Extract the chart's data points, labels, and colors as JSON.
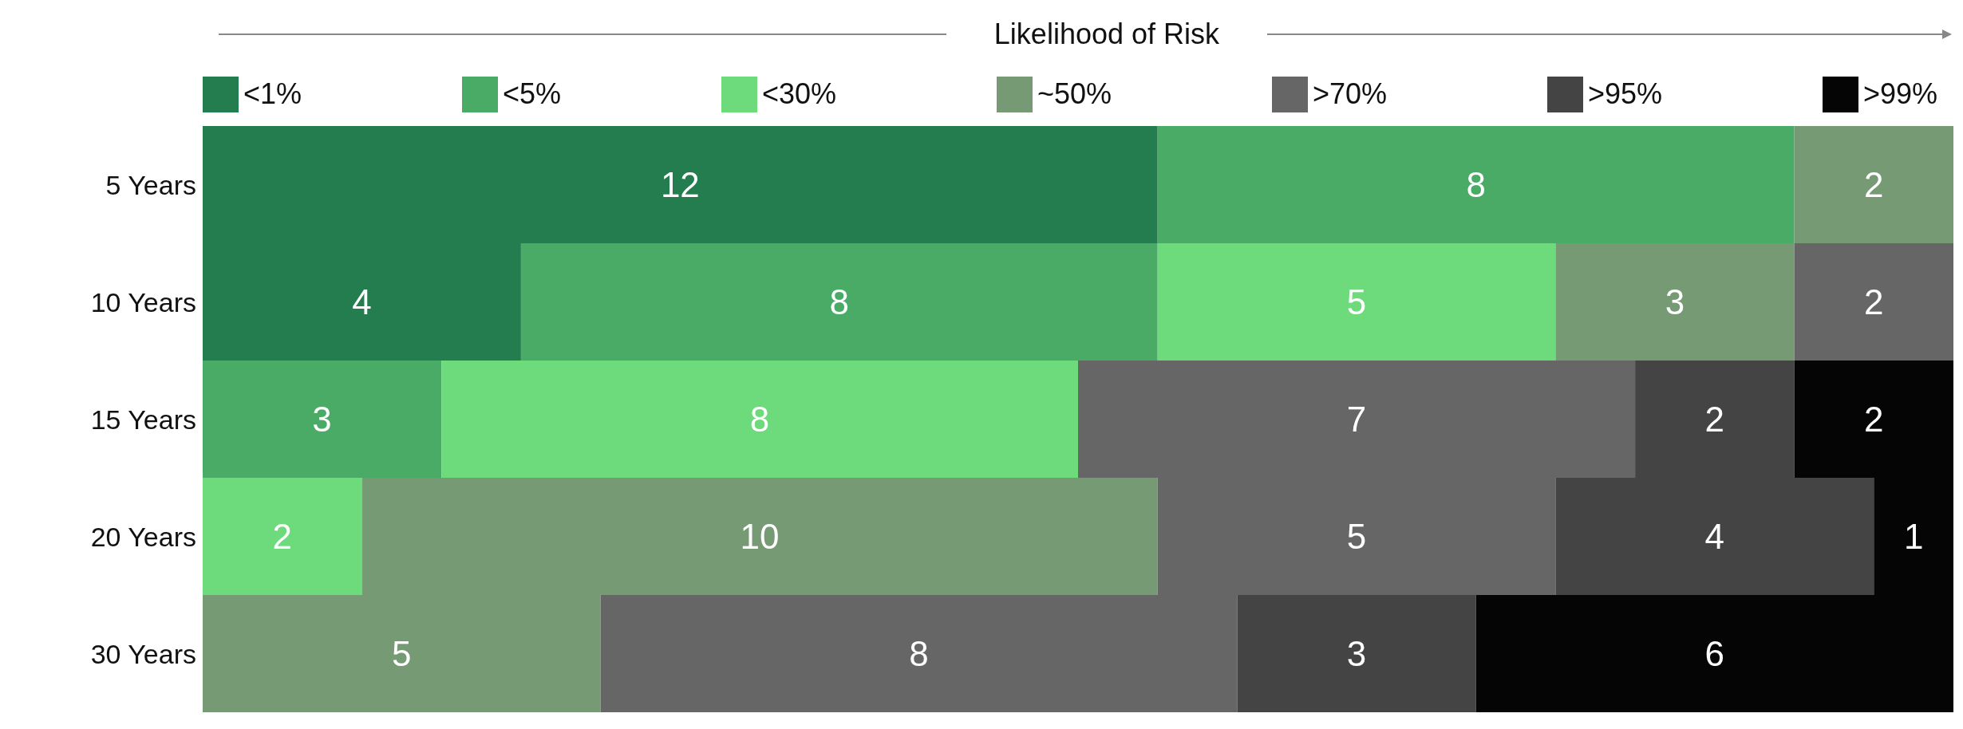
{
  "chart_data": {
    "type": "bar",
    "orientation": "horizontal",
    "stacked": true,
    "legend_title": "Likelihood of Risk",
    "categories": [
      "5 Years",
      "10 Years",
      "15 Years",
      "20 Years",
      "30 Years"
    ],
    "series": [
      {
        "name": "<1%",
        "color": "#237d4f",
        "values": [
          12,
          4,
          null,
          null,
          null
        ]
      },
      {
        "name": "<5%",
        "color": "#4aab67",
        "values": [
          8,
          8,
          3,
          null,
          null
        ]
      },
      {
        "name": "<30%",
        "color": "#6ddb7c",
        "values": [
          null,
          5,
          8,
          2,
          null
        ]
      },
      {
        "name": "~50%",
        "color": "#769a74",
        "values": [
          2,
          3,
          null,
          10,
          5
        ]
      },
      {
        "name": ">70%",
        "color": "#666666",
        "values": [
          null,
          2,
          7,
          5,
          8
        ]
      },
      {
        "name": ">95%",
        "color": "#444444",
        "values": [
          null,
          null,
          2,
          4,
          3
        ]
      },
      {
        "name": ">99%",
        "color": "#050505",
        "values": [
          null,
          null,
          2,
          1,
          6
        ]
      }
    ],
    "xlim": [
      0,
      22
    ],
    "data_labels": true,
    "legend": "top",
    "grid": false,
    "tick_labels": "y"
  }
}
